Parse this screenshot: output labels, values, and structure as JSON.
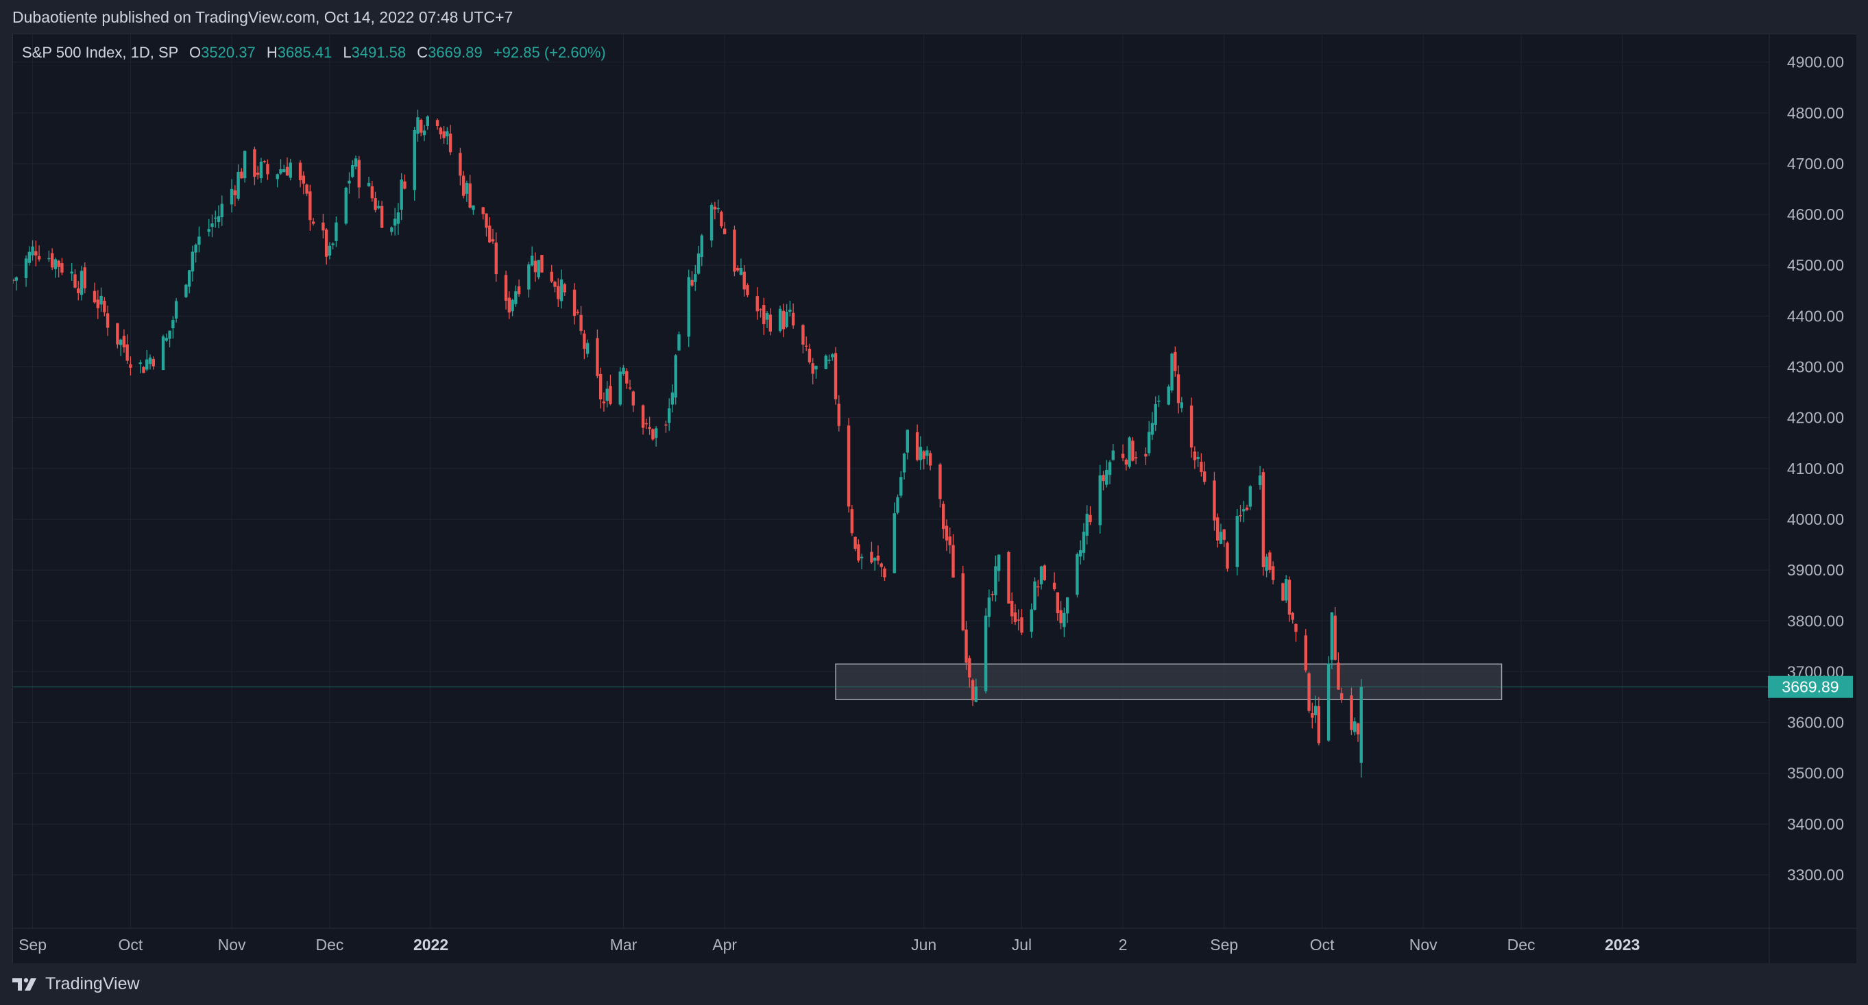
{
  "header": {
    "published_line": "Dubaotiente published on TradingView.com, Oct 14, 2022 07:48 UTC+7"
  },
  "legend": {
    "symbol": "S&P 500 Index, 1D, SP",
    "open_label": "O",
    "open": "3520.37",
    "high_label": "H",
    "high": "3685.41",
    "low_label": "L",
    "low": "3491.58",
    "close_label": "C",
    "close": "3669.89",
    "change": "+92.85 (+2.60%)"
  },
  "footer": {
    "brand": "TradingView"
  },
  "colors": {
    "up": "#26a69a",
    "down": "#ef5350",
    "background": "#131722",
    "grid": "#1f2430",
    "zone_fill": "#3a3f4a",
    "zone_border": "#a0a4ad",
    "price_tag": "#26a69a"
  },
  "chart_data": {
    "type": "candlestick",
    "title": "S&P 500 Index, 1D, SP",
    "ylim": [
      3200,
      4950
    ],
    "y_ticks": [
      "4900.00",
      "4800.00",
      "4700.00",
      "4600.00",
      "4500.00",
      "4400.00",
      "4300.00",
      "4200.00",
      "4100.00",
      "4000.00",
      "3900.00",
      "3800.00",
      "3700.00",
      "3600.00",
      "3500.00",
      "3400.00",
      "3300.00"
    ],
    "x_ticks": [
      {
        "label": "Sep",
        "date": "2021-09-01",
        "bold": false
      },
      {
        "label": "Oct",
        "date": "2021-10-01",
        "bold": false
      },
      {
        "label": "Nov",
        "date": "2021-11-01",
        "bold": false
      },
      {
        "label": "Dec",
        "date": "2021-12-01",
        "bold": false
      },
      {
        "label": "2022",
        "date": "2022-01-01",
        "bold": true
      },
      {
        "label": "Mar",
        "date": "2022-03-01",
        "bold": false
      },
      {
        "label": "Apr",
        "date": "2022-04-01",
        "bold": false
      },
      {
        "label": "Jun",
        "date": "2022-06-01",
        "bold": false
      },
      {
        "label": "Jul",
        "date": "2022-07-01",
        "bold": false
      },
      {
        "label": "2",
        "date": "2022-08-01",
        "bold": false
      },
      {
        "label": "Sep",
        "date": "2022-09-01",
        "bold": false
      },
      {
        "label": "Oct",
        "date": "2022-10-01",
        "bold": false
      },
      {
        "label": "Nov",
        "date": "2022-11-01",
        "bold": false
      },
      {
        "label": "Dec",
        "date": "2022-12-01",
        "bold": false
      },
      {
        "label": "2023",
        "date": "2023-01-01",
        "bold": true
      }
    ],
    "x_range": [
      "2021-08-26",
      "2023-02-15"
    ],
    "last_price": "3669.89",
    "last_price_value": 3669.89,
    "support_zone": {
      "from_date": "2022-05-05",
      "to_date": "2022-11-25",
      "low": 3645,
      "high": 3715
    },
    "close_series": [
      {
        "date": "2021-08-26",
        "close": 4470
      },
      {
        "date": "2021-09-02",
        "close": 4537
      },
      {
        "date": "2021-09-10",
        "close": 4500
      },
      {
        "date": "2021-09-20",
        "close": 4440
      },
      {
        "date": "2021-09-27",
        "close": 4357
      },
      {
        "date": "2021-10-04",
        "close": 4300
      },
      {
        "date": "2021-10-12",
        "close": 4350
      },
      {
        "date": "2021-10-20",
        "close": 4530
      },
      {
        "date": "2021-10-28",
        "close": 4600
      },
      {
        "date": "2021-11-05",
        "close": 4700
      },
      {
        "date": "2021-11-12",
        "close": 4680
      },
      {
        "date": "2021-11-19",
        "close": 4700
      },
      {
        "date": "2021-11-26",
        "close": 4594
      },
      {
        "date": "2021-12-01",
        "close": 4513
      },
      {
        "date": "2021-12-08",
        "close": 4700
      },
      {
        "date": "2021-12-14",
        "close": 4634
      },
      {
        "date": "2021-12-20",
        "close": 4568
      },
      {
        "date": "2021-12-28",
        "close": 4786
      },
      {
        "date": "2022-01-03",
        "close": 4797
      },
      {
        "date": "2022-01-10",
        "close": 4670
      },
      {
        "date": "2022-01-18",
        "close": 4577
      },
      {
        "date": "2022-01-24",
        "close": 4410
      },
      {
        "date": "2022-01-31",
        "close": 4516
      },
      {
        "date": "2022-02-07",
        "close": 4483
      },
      {
        "date": "2022-02-14",
        "close": 4400
      },
      {
        "date": "2022-02-23",
        "close": 4225
      },
      {
        "date": "2022-03-01",
        "close": 4306
      },
      {
        "date": "2022-03-08",
        "close": 4170
      },
      {
        "date": "2022-03-14",
        "close": 4173
      },
      {
        "date": "2022-03-21",
        "close": 4461
      },
      {
        "date": "2022-03-29",
        "close": 4631
      },
      {
        "date": "2022-04-05",
        "close": 4481
      },
      {
        "date": "2022-04-12",
        "close": 4397
      },
      {
        "date": "2022-04-21",
        "close": 4393
      },
      {
        "date": "2022-04-28",
        "close": 4287
      },
      {
        "date": "2022-05-04",
        "close": 4300
      },
      {
        "date": "2022-05-11",
        "close": 3935
      },
      {
        "date": "2022-05-20",
        "close": 3901
      },
      {
        "date": "2022-05-27",
        "close": 4158
      },
      {
        "date": "2022-06-03",
        "close": 4108
      },
      {
        "date": "2022-06-10",
        "close": 3900
      },
      {
        "date": "2022-06-16",
        "close": 3667
      },
      {
        "date": "2022-06-24",
        "close": 3911
      },
      {
        "date": "2022-06-30",
        "close": 3785
      },
      {
        "date": "2022-07-08",
        "close": 3899
      },
      {
        "date": "2022-07-14",
        "close": 3790
      },
      {
        "date": "2022-07-21",
        "close": 3998
      },
      {
        "date": "2022-07-29",
        "close": 4130
      },
      {
        "date": "2022-08-08",
        "close": 4140
      },
      {
        "date": "2022-08-16",
        "close": 4305
      },
      {
        "date": "2022-08-22",
        "close": 4137
      },
      {
        "date": "2022-08-26",
        "close": 4057
      },
      {
        "date": "2022-09-02",
        "close": 3924
      },
      {
        "date": "2022-09-12",
        "close": 4110
      },
      {
        "date": "2022-09-13",
        "close": 3932
      },
      {
        "date": "2022-09-20",
        "close": 3856
      },
      {
        "date": "2022-09-27",
        "close": 3647
      },
      {
        "date": "2022-09-30",
        "close": 3585
      },
      {
        "date": "2022-10-04",
        "close": 3791
      },
      {
        "date": "2022-10-07",
        "close": 3640
      },
      {
        "date": "2022-10-12",
        "close": 3577
      },
      {
        "date": "2022-10-13",
        "close": 3670
      }
    ]
  }
}
